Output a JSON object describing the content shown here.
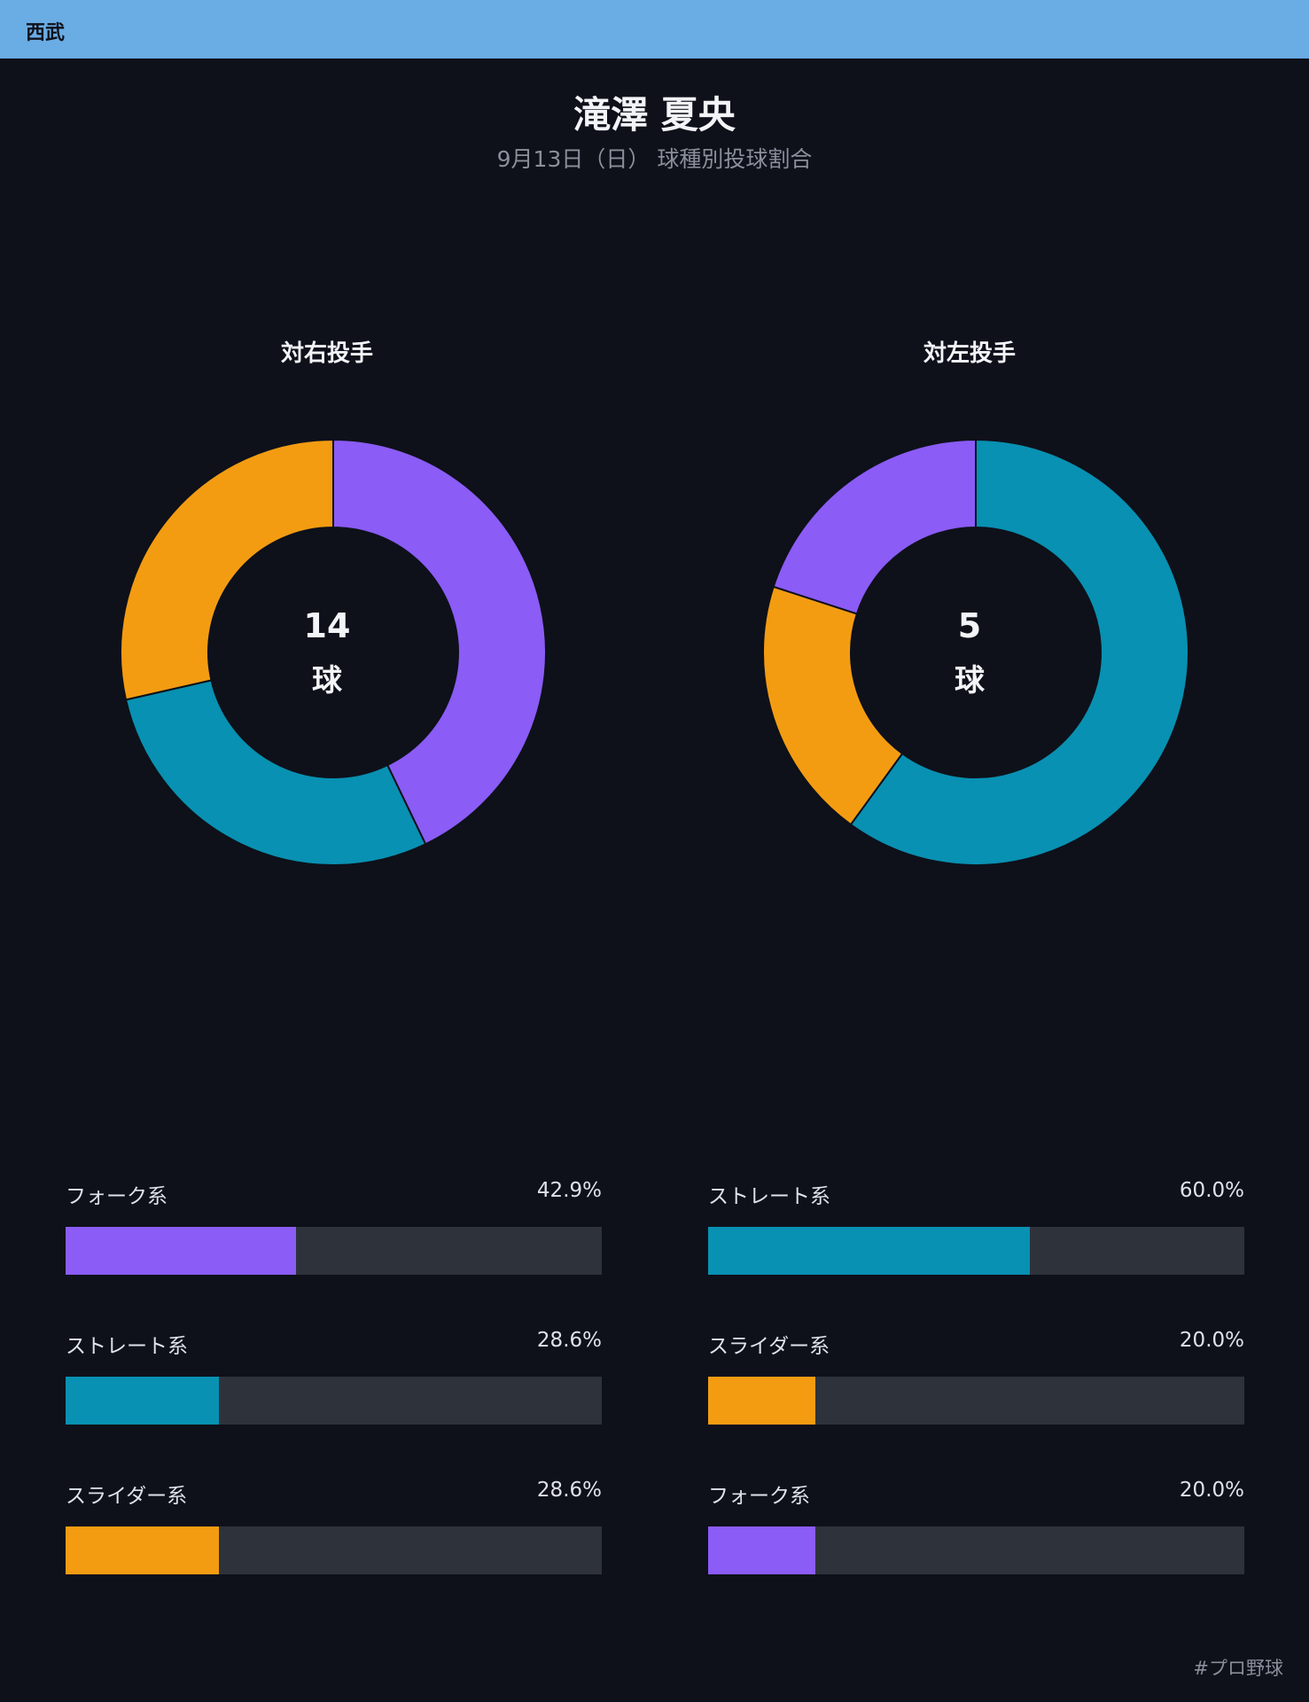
{
  "header": {
    "team": "西武"
  },
  "title": "滝澤 夏央",
  "subtitle": "9月13日（日） 球種別投球割合",
  "hashtag": "#プロ野球",
  "colors": {
    "fork": "#8b5cf6",
    "straight": "#0891b2",
    "slider": "#f39c12",
    "background": "#0e111a",
    "header": "#6aace4",
    "track": "#2e333b"
  },
  "chart_data": [
    {
      "type": "pie",
      "title": "対右投手",
      "center_value": "14",
      "center_unit": "球",
      "slices": [
        {
          "name": "フォーク系",
          "value": 42.9,
          "label": "42.9%",
          "color": "#8b5cf6"
        },
        {
          "name": "ストレート系",
          "value": 28.6,
          "label": "28.6%",
          "color": "#0891b2"
        },
        {
          "name": "スライダー系",
          "value": 28.6,
          "label": "28.6%",
          "color": "#f39c12"
        }
      ]
    },
    {
      "type": "pie",
      "title": "対左投手",
      "center_value": "5",
      "center_unit": "球",
      "slices": [
        {
          "name": "ストレート系",
          "value": 60.0,
          "label": "60.0%",
          "color": "#0891b2"
        },
        {
          "name": "スライダー系",
          "value": 20.0,
          "label": "20.0%",
          "color": "#f39c12"
        },
        {
          "name": "フォーク系",
          "value": 20.0,
          "label": "20.0%",
          "color": "#8b5cf6"
        }
      ]
    }
  ]
}
